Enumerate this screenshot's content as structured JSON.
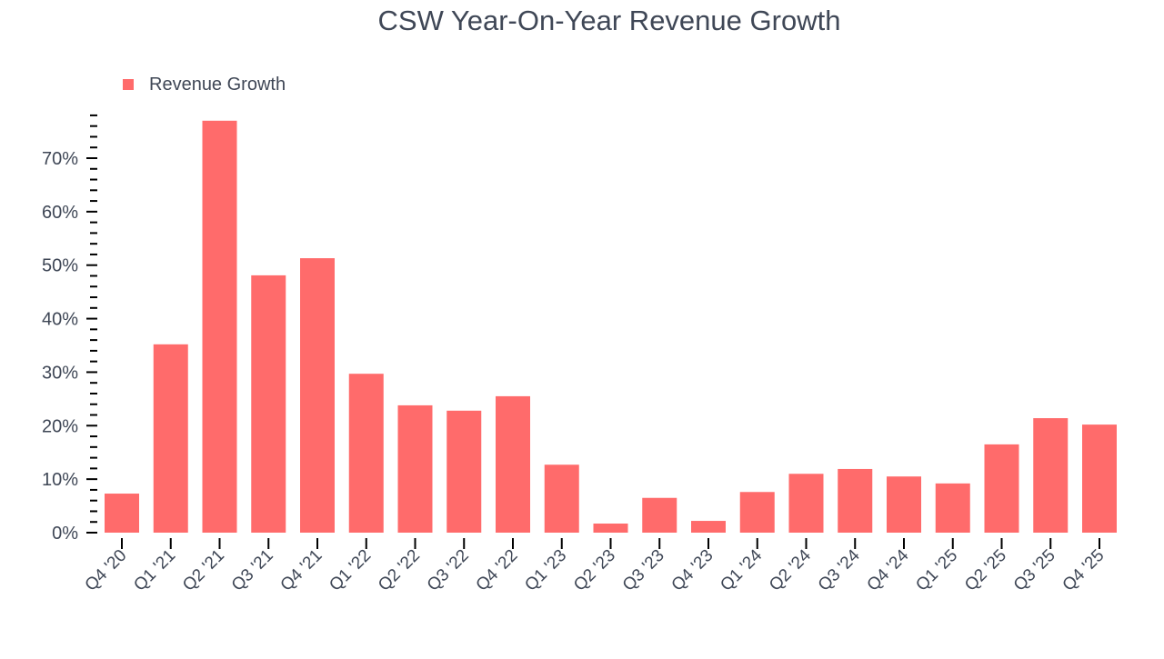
{
  "chart_data": {
    "type": "bar",
    "title": "CSW Year-On-Year Revenue Growth",
    "xlabel": "",
    "ylabel": "",
    "ylim": [
      0,
      78
    ],
    "yticks": [
      0,
      10,
      20,
      30,
      40,
      50,
      60,
      70
    ],
    "ytick_labels": [
      "0%",
      "10%",
      "20%",
      "30%",
      "40%",
      "50%",
      "60%",
      "70%"
    ],
    "grid": false,
    "legend": {
      "position": "top-left",
      "entries": [
        "Revenue Growth"
      ]
    },
    "categories": [
      "Q4 '20",
      "Q1 '21",
      "Q2 '21",
      "Q3 '21",
      "Q4 '21",
      "Q1 '22",
      "Q2 '22",
      "Q3 '22",
      "Q4 '22",
      "Q1 '23",
      "Q2 '23",
      "Q3 '23",
      "Q4 '23",
      "Q1 '24",
      "Q2 '24",
      "Q3 '24",
      "Q4 '24",
      "Q1 '25",
      "Q2 '25",
      "Q3 '25",
      "Q4 '25"
    ],
    "series": [
      {
        "name": "Revenue Growth",
        "color": "#ff6b6b",
        "values": [
          7.3,
          35.2,
          77.0,
          48.1,
          51.3,
          29.7,
          23.8,
          22.8,
          25.5,
          12.7,
          1.7,
          6.5,
          2.2,
          7.6,
          11.0,
          11.9,
          10.5,
          9.2,
          16.5,
          21.4,
          20.2
        ]
      }
    ]
  }
}
